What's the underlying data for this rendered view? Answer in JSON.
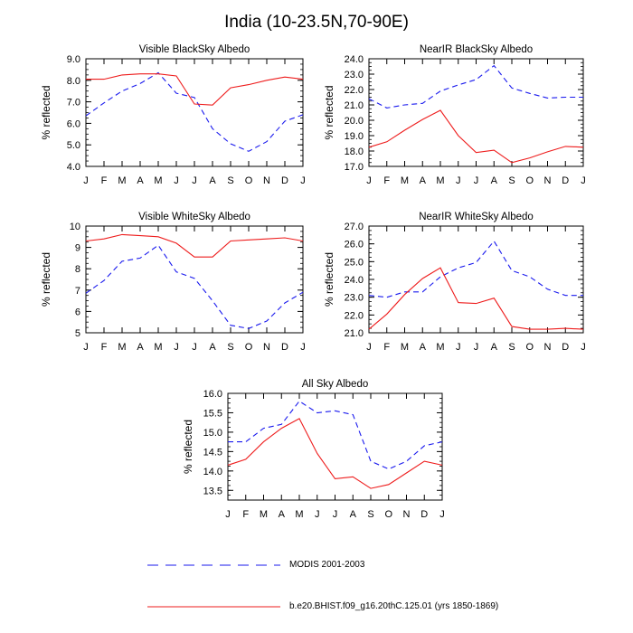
{
  "title": "India (10-23.5N,70-90E)",
  "series_styles": {
    "modis": {
      "color": "#1a1aee",
      "dash": "dashed"
    },
    "model": {
      "color": "#ee1c1c",
      "dash": "solid"
    }
  },
  "legend": [
    {
      "key": "modis",
      "label": "MODIS 2001-2003"
    },
    {
      "key": "model",
      "label": "b.e20.BHIST.f09_g16.20thC.125.01 (yrs 1850-1869)"
    }
  ],
  "chart_data": [
    {
      "type": "line",
      "title": "Visible BlackSky Albedo",
      "ylabel": "% reflected",
      "categories": [
        "J",
        "F",
        "M",
        "A",
        "M",
        "J",
        "J",
        "A",
        "S",
        "O",
        "N",
        "D",
        "J"
      ],
      "ylim": [
        4.0,
        9.0
      ],
      "yticks": [
        4.0,
        5.0,
        6.0,
        7.0,
        8.0,
        9.0
      ],
      "ytick_labels": [
        "4.0",
        "5.0",
        "6.0",
        "7.0",
        "8.0",
        "9.0"
      ],
      "series": [
        {
          "name": "MODIS 2001-2003",
          "key": "modis",
          "values": [
            6.35,
            6.95,
            7.5,
            7.85,
            8.35,
            7.4,
            7.2,
            5.75,
            5.05,
            4.7,
            5.15,
            6.1,
            6.4
          ]
        },
        {
          "name": "b.e20.BHIST.f09_g16.20thC.125.01 (yrs 1850-1869)",
          "key": "model",
          "values": [
            8.05,
            8.05,
            8.25,
            8.3,
            8.3,
            8.2,
            6.9,
            6.85,
            7.65,
            7.8,
            8.0,
            8.15,
            8.05
          ]
        }
      ]
    },
    {
      "type": "line",
      "title": "NearIR BlackSky Albedo",
      "ylabel": "% reflected",
      "categories": [
        "J",
        "F",
        "M",
        "A",
        "M",
        "J",
        "J",
        "A",
        "S",
        "O",
        "N",
        "D",
        "J"
      ],
      "ylim": [
        17.0,
        24.0
      ],
      "yticks": [
        17.0,
        18.0,
        19.0,
        20.0,
        21.0,
        22.0,
        23.0,
        24.0
      ],
      "ytick_labels": [
        "17.0",
        "18.0",
        "19.0",
        "20.0",
        "21.0",
        "22.0",
        "23.0",
        "24.0"
      ],
      "series": [
        {
          "name": "MODIS 2001-2003",
          "key": "modis",
          "values": [
            21.4,
            20.8,
            21.0,
            21.1,
            21.9,
            22.3,
            22.65,
            23.55,
            22.1,
            21.75,
            21.45,
            21.5,
            21.5
          ]
        },
        {
          "name": "b.e20.BHIST.f09_g16.20thC.125.01 (yrs 1850-1869)",
          "key": "model",
          "values": [
            18.25,
            18.6,
            19.35,
            20.05,
            20.65,
            19.0,
            17.9,
            18.05,
            17.25,
            17.55,
            17.95,
            18.3,
            18.25
          ]
        }
      ]
    },
    {
      "type": "line",
      "title": "Visible WhiteSky Albedo",
      "ylabel": "% reflected",
      "categories": [
        "J",
        "F",
        "M",
        "A",
        "M",
        "J",
        "J",
        "A",
        "S",
        "O",
        "N",
        "D",
        "J"
      ],
      "ylim": [
        5,
        10
      ],
      "yticks": [
        5,
        6,
        7,
        8,
        9,
        10
      ],
      "ytick_labels": [
        "5",
        "6",
        "7",
        "8",
        "9",
        "10"
      ],
      "series": [
        {
          "name": "MODIS 2001-2003",
          "key": "modis",
          "values": [
            6.85,
            7.45,
            8.35,
            8.5,
            9.1,
            7.85,
            7.55,
            6.5,
            5.35,
            5.2,
            5.55,
            6.4,
            6.9
          ]
        },
        {
          "name": "b.e20.BHIST.f09_g16.20thC.125.01 (yrs 1850-1869)",
          "key": "model",
          "values": [
            9.3,
            9.4,
            9.6,
            9.55,
            9.5,
            9.2,
            8.55,
            8.55,
            9.3,
            9.35,
            9.4,
            9.45,
            9.3
          ]
        }
      ]
    },
    {
      "type": "line",
      "title": "NearIR WhiteSky Albedo",
      "ylabel": "% reflected",
      "categories": [
        "J",
        "F",
        "M",
        "A",
        "M",
        "J",
        "J",
        "A",
        "S",
        "O",
        "N",
        "D",
        "J"
      ],
      "ylim": [
        21.0,
        27.0
      ],
      "yticks": [
        21.0,
        22.0,
        23.0,
        24.0,
        25.0,
        26.0,
        27.0
      ],
      "ytick_labels": [
        "21.0",
        "22.0",
        "23.0",
        "24.0",
        "25.0",
        "26.0",
        "27.0"
      ],
      "series": [
        {
          "name": "MODIS 2001-2003",
          "key": "modis",
          "values": [
            23.1,
            23.0,
            23.3,
            23.3,
            24.15,
            24.65,
            24.95,
            26.15,
            24.5,
            24.15,
            23.45,
            23.1,
            23.1
          ]
        },
        {
          "name": "b.e20.BHIST.f09_g16.20thC.125.01 (yrs 1850-1869)",
          "key": "model",
          "values": [
            21.2,
            22.05,
            23.15,
            24.05,
            24.65,
            22.7,
            22.65,
            22.95,
            21.35,
            21.2,
            21.2,
            21.25,
            21.2
          ]
        }
      ]
    },
    {
      "type": "line",
      "title": "All Sky Albedo",
      "ylabel": "% reflected",
      "categories": [
        "J",
        "F",
        "M",
        "A",
        "M",
        "J",
        "J",
        "A",
        "S",
        "O",
        "N",
        "D",
        "J"
      ],
      "ylim": [
        13.25,
        16.0
      ],
      "yticks": [
        13.5,
        14.0,
        14.5,
        15.0,
        15.5,
        16.0
      ],
      "ytick_labels": [
        "13.5",
        "14.0",
        "14.5",
        "15.0",
        "15.5",
        "16.0"
      ],
      "series": [
        {
          "name": "MODIS 2001-2003",
          "key": "modis",
          "values": [
            14.75,
            14.75,
            15.1,
            15.2,
            15.8,
            15.5,
            15.55,
            15.45,
            14.25,
            14.05,
            14.25,
            14.65,
            14.75
          ]
        },
        {
          "name": "b.e20.BHIST.f09_g16.20thC.125.01 (yrs 1850-1869)",
          "key": "model",
          "values": [
            14.15,
            14.3,
            14.75,
            15.1,
            15.35,
            14.45,
            13.8,
            13.85,
            13.55,
            13.65,
            13.95,
            14.25,
            14.15
          ]
        }
      ]
    }
  ]
}
